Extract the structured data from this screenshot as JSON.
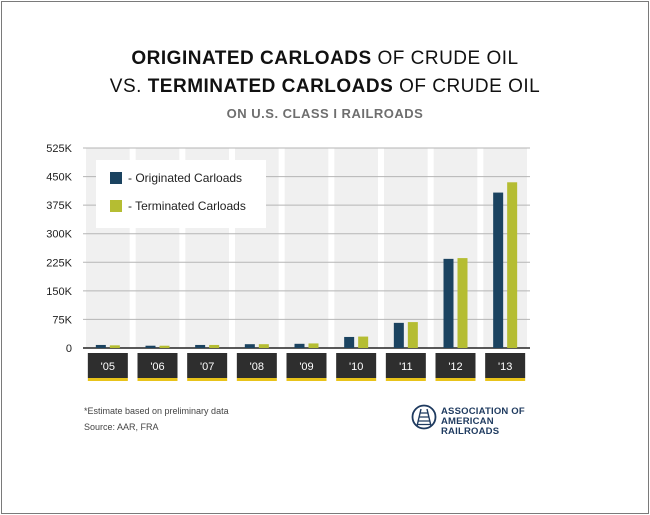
{
  "title": {
    "line1_bold": "ORIGINATED CARLOADS",
    "line1_rest": " OF CRUDE OIL",
    "line2_pre": "VS. ",
    "line2_bold": "TERMINATED CARLOADS",
    "line2_rest": " OF CRUDE OIL"
  },
  "subtitle": "ON U.S. CLASS I RAILROADS",
  "footnote": "*Estimate based on preliminary data",
  "source": "Source: AAR, FRA",
  "logo": {
    "line1": "ASSOCIATION OF",
    "line2": "AMERICAN RAILROADS",
    "icon": "railroad-track-icon"
  },
  "colors": {
    "originated": "#1b4360",
    "terminated": "#b5bd32",
    "axis_label_bg": "#2e2e2e",
    "axis_label_accent": "#e8c31a",
    "band": "#f0f0f0"
  },
  "chart_data": {
    "type": "bar",
    "categories": [
      "'05",
      "'06",
      "'07",
      "'08",
      "'09",
      "'10",
      "'11",
      "'12",
      "'13"
    ],
    "series": [
      {
        "name": "- Originated Carloads",
        "values": [
          8000,
          6000,
          8000,
          10000,
          11000,
          29000,
          66000,
          234000,
          408000
        ]
      },
      {
        "name": "- Terminated Carloads",
        "values": [
          7000,
          6000,
          8000,
          10000,
          12000,
          30000,
          68000,
          236000,
          435000
        ]
      }
    ],
    "ylim": [
      0,
      525000
    ],
    "yticks": [
      0,
      75000,
      150000,
      225000,
      300000,
      375000,
      450000,
      525000
    ],
    "ytick_labels": [
      "0",
      "75K",
      "150K",
      "225K",
      "300K",
      "375K",
      "450K",
      "525K"
    ],
    "legend": "top-left",
    "grid": true
  }
}
